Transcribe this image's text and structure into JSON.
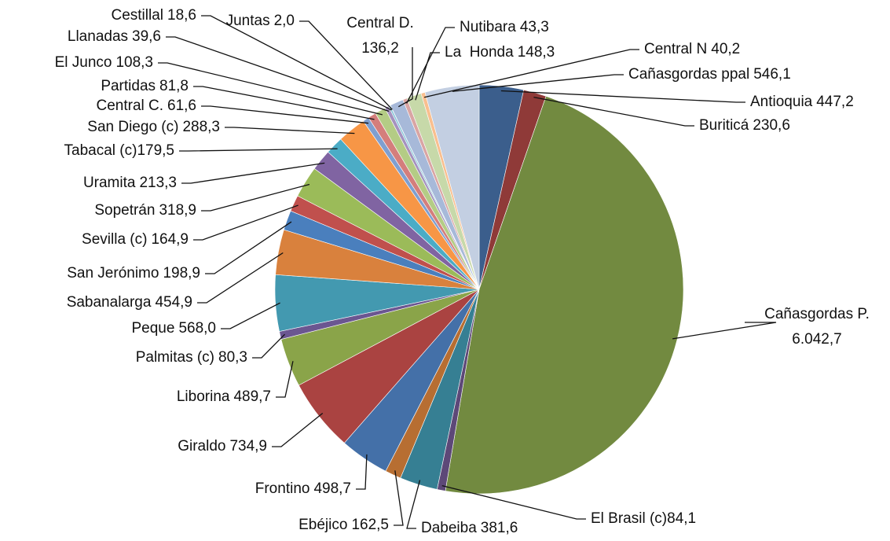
{
  "chart_data": {
    "type": "pie",
    "categories": [
      "Antioquia",
      "Buriticá",
      "Cañasgordas P.",
      "El Brasil (c)",
      "Dabeiba",
      "Ebéjico",
      "Frontino",
      "Giraldo",
      "Liborina",
      "Palmitas (c)",
      "Peque",
      "Sabanalarga",
      "San Jerónimo",
      "Sevilla (c)",
      "Sopetrán",
      "Uramita",
      "Tabacal (c)",
      "San Diego (c)",
      "Central C.",
      "Partidas",
      "El Junco",
      "Llanadas",
      "Cestillal",
      "Juntas",
      "Central D.",
      "Nutibara",
      "La  Honda",
      "Central N",
      "Cañasgordas ppal"
    ],
    "values": [
      447.2,
      230.6,
      6042.7,
      84.1,
      381.6,
      162.5,
      498.7,
      734.9,
      489.7,
      80.3,
      568.0,
      454.9,
      198.9,
      164.9,
      318.9,
      213.3,
      179.5,
      288.3,
      61.6,
      81.8,
      108.3,
      39.6,
      18.6,
      2.0,
      136.2,
      43.3,
      148.3,
      40.2,
      546.1
    ],
    "value_labels": [
      "447,2",
      "230,6",
      "6.042,7",
      "84,1",
      "381,6",
      "162,5",
      "498,7",
      "734,9",
      "489,7",
      "80,3",
      "568,0",
      "454,9",
      "198,9",
      "164,9",
      "318,9",
      "213,3",
      "179,5",
      "288,3",
      "61,6",
      "81,8",
      "108,3",
      "39,6",
      "18,6",
      "2,0",
      "136,2",
      "43,3",
      "148,3",
      "40,2",
      "546,1"
    ],
    "colors": [
      "#3b5e8c",
      "#8f3a38",
      "#728a40",
      "#5d4878",
      "#367f93",
      "#b76e32",
      "#4470a8",
      "#aa4341",
      "#8aa449",
      "#6b5691",
      "#4399b0",
      "#d9813d",
      "#4a7fbd",
      "#c0504d",
      "#9bbb59",
      "#8064a2",
      "#4bacc6",
      "#f79646",
      "#7f9fd0",
      "#d47e7c",
      "#b4cc85",
      "#a592bf",
      "#84c6d8",
      "#f9b47d",
      "#a7b9d9",
      "#d9a5a4",
      "#c7d9a9",
      "#f9bf8f",
      "#c3cfe2"
    ]
  }
}
